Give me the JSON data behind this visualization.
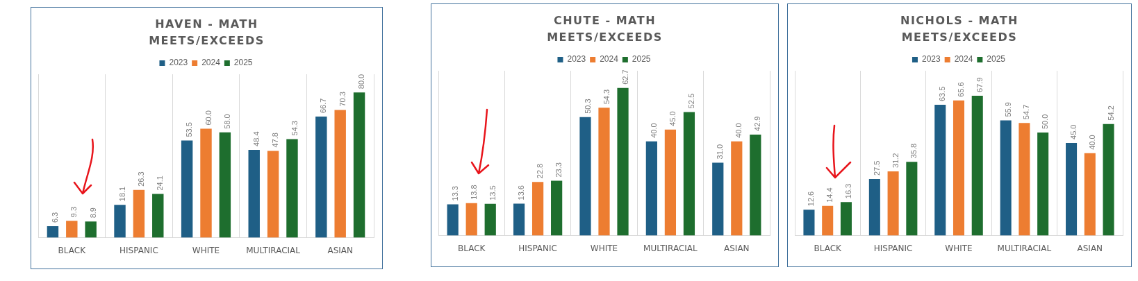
{
  "chart_data": [
    {
      "type": "bar",
      "title": "HAVEN - MATH MEETS/EXCEEDS",
      "categories": [
        "BLACK",
        "HISPANIC",
        "WHITE",
        "MULTIRACIAL",
        "ASIAN"
      ],
      "grid": "x",
      "legend": "top",
      "tick_labels": "x",
      "series": [
        {
          "name": "2023",
          "color": "#1f5f86",
          "values": [
            6.3,
            18.1,
            53.5,
            48.4,
            66.7
          ],
          "value_labels": [
            "6.3",
            "18.1",
            "53.5",
            "48.4",
            "66.7"
          ]
        },
        {
          "name": "2024",
          "color": "#ed7d31",
          "values": [
            9.3,
            26.3,
            60.0,
            47.8,
            70.3
          ],
          "value_labels": [
            "9.3",
            "26.3",
            "60.0",
            "47.8",
            "70.3"
          ]
        },
        {
          "name": "2025",
          "color": "#1e6e2e",
          "values": [
            8.9,
            24.1,
            58.0,
            54.3,
            80.0
          ],
          "value_labels": [
            "8.9",
            "24.1",
            "58.0",
            "54.3",
            "80.0"
          ]
        }
      ]
    },
    {
      "type": "bar",
      "title": "CHUTE - MATH MEETS/EXCEEDS",
      "categories": [
        "BLACK",
        "HISPANIC",
        "WHITE",
        "MULTIRACIAL",
        "ASIAN"
      ],
      "grid": "x",
      "legend": "top",
      "tick_labels": "x",
      "series": [
        {
          "name": "2023",
          "color": "#1f5f86",
          "values": [
            13.3,
            13.6,
            50.3,
            40.0,
            31.0
          ],
          "value_labels": [
            "13.3",
            "13.6",
            "50.3",
            "40.0",
            "31.0"
          ]
        },
        {
          "name": "2024",
          "color": "#ed7d31",
          "values": [
            13.8,
            22.8,
            54.3,
            45.0,
            40.0
          ],
          "value_labels": [
            "13.8",
            "22.8",
            "54.3",
            "45.0",
            "40.0"
          ]
        },
        {
          "name": "2025",
          "color": "#1e6e2e",
          "values": [
            13.5,
            23.3,
            62.7,
            52.5,
            42.9
          ],
          "value_labels": [
            "13.5",
            "23.3",
            "62.7",
            "52.5",
            "42.9"
          ]
        }
      ]
    },
    {
      "type": "bar",
      "title": "NICHOLS - MATH MEETS/EXCEEDS",
      "categories": [
        "BLACK",
        "HISPANIC",
        "WHITE",
        "MULTIRACIAL",
        "ASIAN"
      ],
      "grid": "x",
      "legend": "top",
      "tick_labels": "x",
      "series": [
        {
          "name": "2023",
          "color": "#1f5f86",
          "values": [
            12.6,
            27.5,
            63.5,
            55.9,
            45.0
          ],
          "value_labels": [
            "12.6",
            "27.5",
            "63.5",
            "55.9",
            "45.0"
          ]
        },
        {
          "name": "2024",
          "color": "#ed7d31",
          "values": [
            14.4,
            31.2,
            65.6,
            54.7,
            40.0
          ],
          "value_labels": [
            "14.4",
            "31.2",
            "65.6",
            "54.7",
            "40.0"
          ]
        },
        {
          "name": "2025",
          "color": "#1e6e2e",
          "values": [
            16.3,
            35.8,
            67.9,
            50.0,
            54.2
          ],
          "value_labels": [
            "16.3",
            "35.8",
            "67.9",
            "50.0",
            "54.2"
          ]
        }
      ]
    }
  ]
}
